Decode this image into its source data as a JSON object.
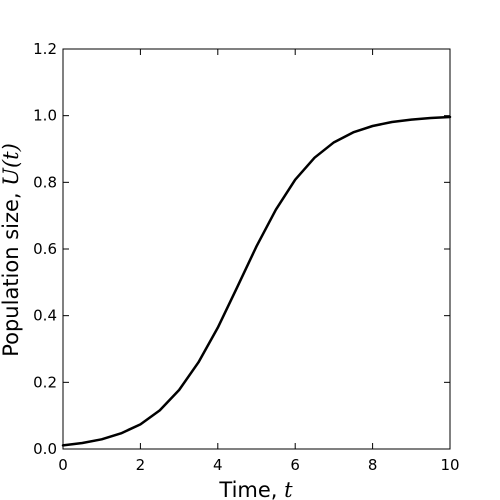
{
  "chart_data": {
    "type": "line",
    "title": "",
    "xlabel": "Time, ",
    "xlabel_var": "t",
    "ylabel": "Population size, ",
    "ylabel_var": "U(t)",
    "xlim": [
      0,
      10
    ],
    "ylim": [
      0,
      1.2
    ],
    "x_ticks": [
      0,
      2,
      4,
      6,
      8,
      10
    ],
    "x_tick_labels": [
      "0",
      "2",
      "4",
      "6",
      "8",
      "10"
    ],
    "y_ticks": [
      0,
      0.2,
      0.4,
      0.6,
      0.8,
      1.0,
      1.2
    ],
    "y_tick_labels": [
      "0.0",
      "0.2",
      "0.4",
      "0.6",
      "0.8",
      "1.0",
      "1.2"
    ],
    "grid": false,
    "line_color": "#000000",
    "series": [
      {
        "x": [
          0,
          0.5,
          1,
          1.5,
          2,
          2.5,
          3,
          3.5,
          4,
          4.5,
          5,
          5.5,
          6,
          6.5,
          7,
          7.5,
          8,
          8.5,
          9,
          9.5,
          10
        ],
        "values": [
          0.011,
          0.018,
          0.029,
          0.047,
          0.074,
          0.116,
          0.177,
          0.26,
          0.364,
          0.485,
          0.608,
          0.718,
          0.808,
          0.874,
          0.92,
          0.95,
          0.969,
          0.981,
          0.988,
          0.993,
          0.996
        ]
      }
    ]
  }
}
